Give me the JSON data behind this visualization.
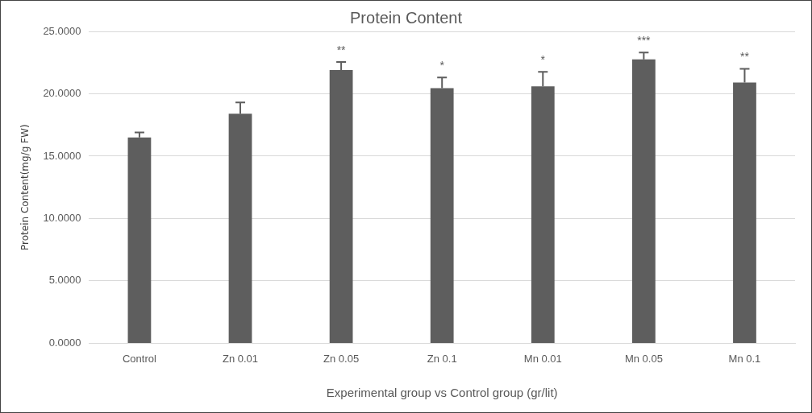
{
  "chart_data": {
    "type": "bar",
    "title": "Protein Content",
    "xlabel": "Experimental group vs Control group (gr/lit)",
    "ylabel": "Protein Content(mg/g FW)",
    "categories": [
      "Control",
      "Zn 0.01",
      "Zn 0.05",
      "Zn 0.1",
      "Mn 0.01",
      "Mn 0.05",
      "Mn 0.1"
    ],
    "values": [
      16.5,
      18.4,
      21.9,
      20.45,
      20.6,
      22.75,
      20.9
    ],
    "errors": [
      [
        16.5,
        16.9
      ],
      [
        18.4,
        19.3
      ],
      [
        21.9,
        22.55
      ],
      [
        20.45,
        21.3
      ],
      [
        20.6,
        21.75
      ],
      [
        22.75,
        23.3
      ],
      [
        20.9,
        22.0
      ]
    ],
    "color": "#5e5e5e",
    "ylim": [
      0,
      25
    ],
    "yticks": [
      {
        "value": 0,
        "label": "0.0000"
      },
      {
        "value": 5,
        "label": "5.0000"
      },
      {
        "value": 10,
        "label": "10.0000"
      },
      {
        "value": 15,
        "label": "15.0000"
      },
      {
        "value": 20,
        "label": "20.0000"
      },
      {
        "value": 25,
        "label": "25.0000"
      }
    ],
    "grid": "y",
    "legend": false,
    "annotations": [
      {
        "text": "**",
        "x": "Zn 0.05",
        "y": 22.55
      },
      {
        "text": "*",
        "x": "Zn 0.1",
        "y": 21.3
      },
      {
        "text": "*",
        "x": "Mn 0.01",
        "y": 21.75
      },
      {
        "text": "***",
        "x": "Mn 0.05",
        "y": 23.3
      },
      {
        "text": "**",
        "x": "Mn 0.1",
        "y": 22.0
      }
    ]
  }
}
